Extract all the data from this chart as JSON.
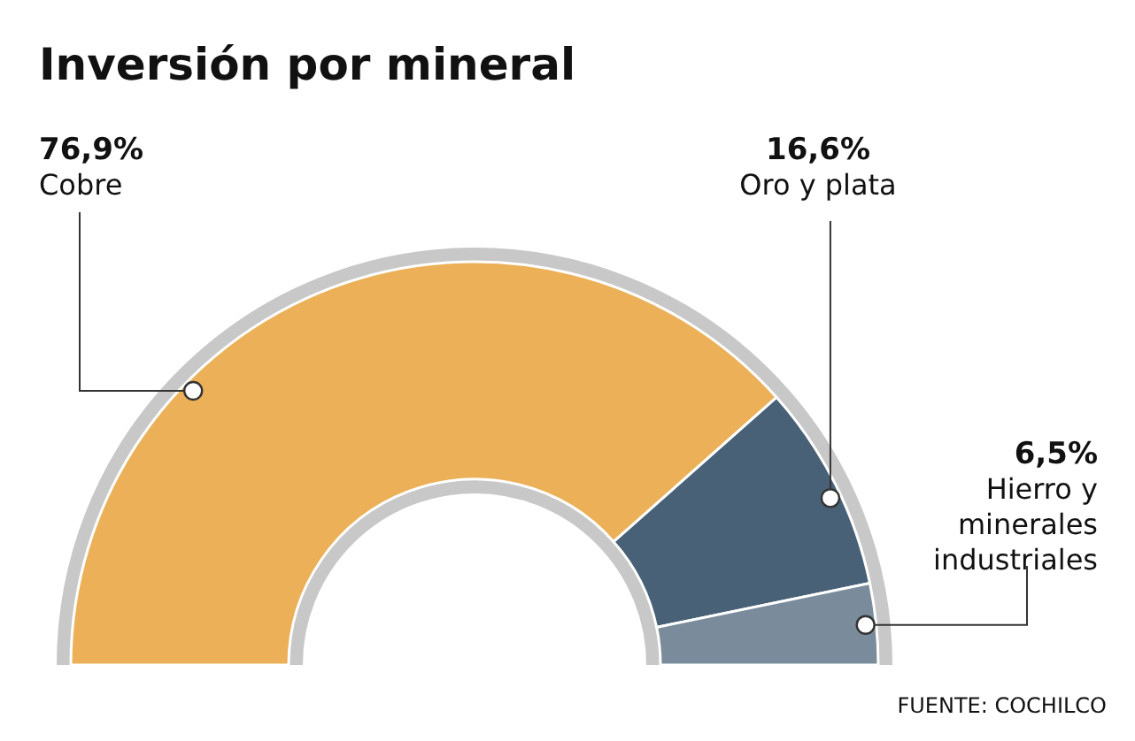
{
  "chart_data": {
    "type": "donut",
    "title": "Inversión por mineral",
    "categories": [
      "Cobre",
      "Oro y plata",
      "Hierro y minerales industriales"
    ],
    "values": [
      76.9,
      16.6,
      6.5
    ],
    "colors": [
      "#ebb058",
      "#486177",
      "#7a8c9b"
    ],
    "value_labels": [
      "76,9%",
      "16,6%",
      "6,5%"
    ],
    "annotations": [
      "FUENTE: COCHILCO"
    ]
  }
}
